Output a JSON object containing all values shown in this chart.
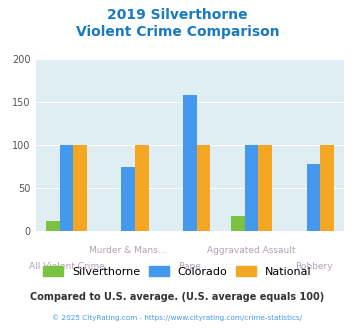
{
  "title_line1": "2019 Silverthorne",
  "title_line2": "Violent Crime Comparison",
  "categories": [
    "All Violent Crime",
    "Murder & Mans...",
    "Rape",
    "Aggravated Assault",
    "Robbery"
  ],
  "cat_row": [
    1,
    0,
    1,
    0,
    1
  ],
  "series": {
    "Silverthorne": [
      12,
      0,
      0,
      17,
      0
    ],
    "Colorado": [
      100,
      75,
      158,
      100,
      78
    ],
    "National": [
      100,
      100,
      100,
      100,
      100
    ]
  },
  "colors": {
    "Silverthorne": "#7bc142",
    "Colorado": "#4499ee",
    "National": "#f5a623"
  },
  "ylim": [
    0,
    200
  ],
  "yticks": [
    0,
    50,
    100,
    150,
    200
  ],
  "plot_bg": "#deeef2",
  "title_color": "#1a7abf",
  "xlabel_color": "#b0a0b8",
  "footer_text": "Compared to U.S. average. (U.S. average equals 100)",
  "footer_color": "#333333",
  "copyright_text": "© 2025 CityRating.com - https://www.cityrating.com/crime-statistics/",
  "copyright_color": "#4499ee",
  "bar_width": 0.22
}
